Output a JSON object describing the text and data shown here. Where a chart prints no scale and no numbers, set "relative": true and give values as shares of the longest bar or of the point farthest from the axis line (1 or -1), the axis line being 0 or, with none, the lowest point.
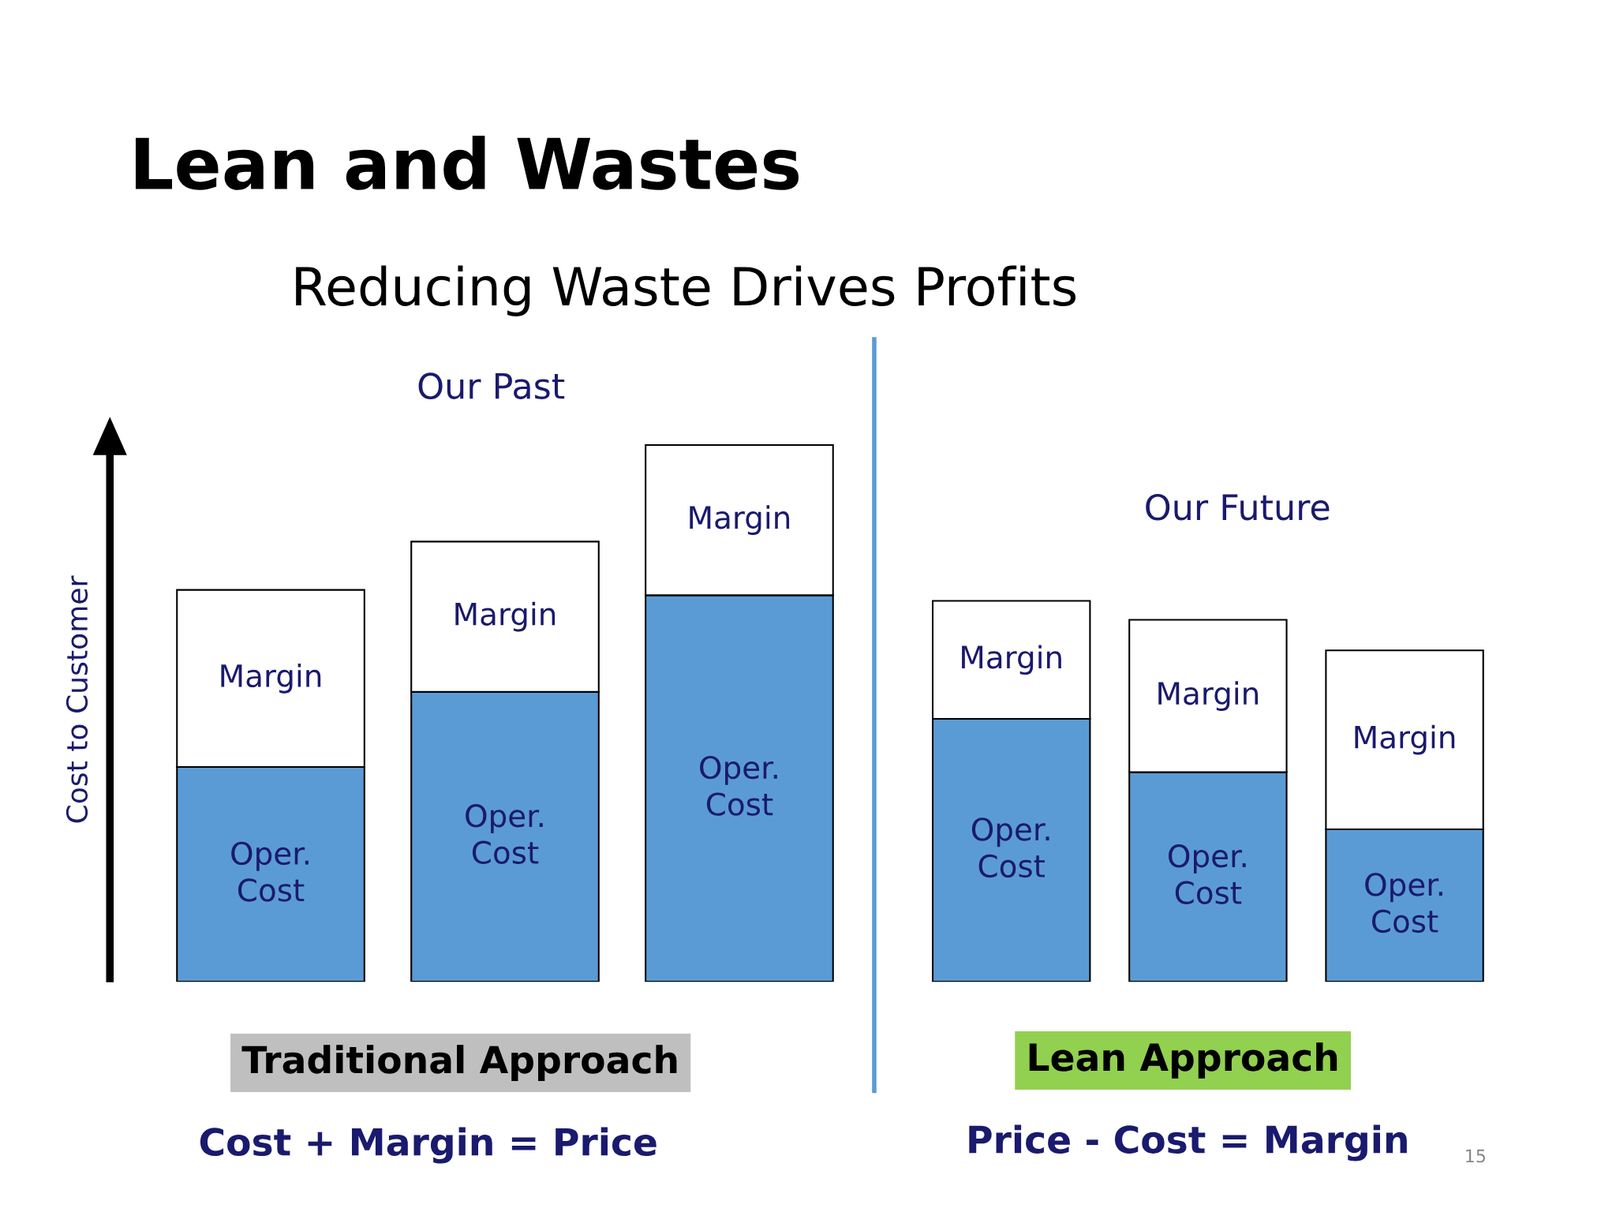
{
  "chart_data": [
    {
      "type": "bar",
      "stacked": true,
      "relative": true,
      "title": "Our Past",
      "ylabel": "Cost to Customer",
      "categories": [
        null,
        null,
        null
      ],
      "series": [
        {
          "name": "Oper. Cost",
          "color": "#5b9bd5",
          "values": [
            0.4,
            0.54,
            0.72
          ]
        },
        {
          "name": "Margin",
          "color": "#ffffff",
          "values": [
            0.33,
            0.28,
            0.28
          ]
        }
      ],
      "annotations": [
        "Lean and Wastes",
        "Reducing Waste Drives Profits",
        "Traditional Approach",
        "Cost + Margin = Price"
      ]
    },
    {
      "type": "bar",
      "stacked": true,
      "relative": true,
      "title": "Our Future",
      "categories": [
        null,
        null,
        null
      ],
      "series": [
        {
          "name": "Oper. Cost",
          "color": "#5b9bd5",
          "values": [
            0.69,
            0.55,
            0.4
          ]
        },
        {
          "name": "Margin",
          "color": "#ffffff",
          "values": [
            0.31,
            0.4,
            0.47
          ]
        }
      ],
      "annotations": [
        "Lean Approach",
        "Price - Cost = Margin",
        "15"
      ]
    }
  ]
}
